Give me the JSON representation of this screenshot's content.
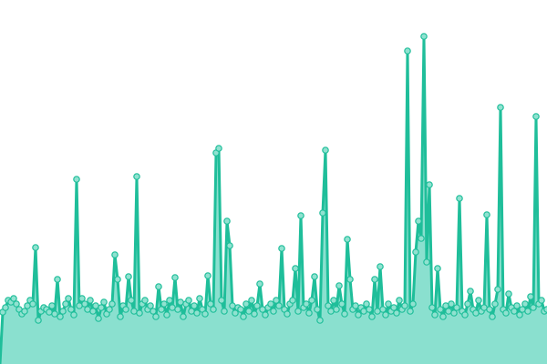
{
  "chart_data": {
    "type": "area",
    "title": "",
    "xlabel": "",
    "ylabel": "",
    "grid": false,
    "legend": "none",
    "axes_visible": false,
    "ylim": [
      0,
      400
    ],
    "colors": {
      "line": "#1fbe9a",
      "fill": "#8ae0cf",
      "marker_fill": "#90e2d0",
      "marker_stroke": "#1fbe9a"
    },
    "values": [
      0,
      57,
      62,
      70,
      68,
      72,
      66,
      60,
      55,
      58,
      64,
      70,
      66,
      128,
      48,
      58,
      62,
      60,
      57,
      64,
      55,
      93,
      52,
      58,
      66,
      72,
      60,
      54,
      203,
      64,
      72,
      66,
      60,
      70,
      58,
      64,
      50,
      62,
      68,
      55,
      60,
      66,
      120,
      93,
      52,
      64,
      60,
      96,
      70,
      58,
      206,
      56,
      66,
      70,
      60,
      64,
      58,
      52,
      85,
      60,
      66,
      54,
      70,
      62,
      95,
      60,
      68,
      52,
      66,
      70,
      58,
      64,
      56,
      72,
      60,
      55,
      97,
      66,
      60,
      232,
      237,
      70,
      58,
      157,
      130,
      64,
      56,
      62,
      60,
      52,
      66,
      58,
      70,
      55,
      64,
      88,
      60,
      54,
      62,
      66,
      58,
      70,
      64,
      127,
      60,
      55,
      66,
      70,
      105,
      58,
      163,
      62,
      66,
      56,
      70,
      96,
      60,
      48,
      166,
      235,
      64,
      58,
      70,
      60,
      86,
      66,
      55,
      137,
      93,
      60,
      64,
      54,
      62,
      58,
      66,
      60,
      52,
      93,
      58,
      107,
      60,
      54,
      66,
      58,
      62,
      56,
      70,
      60,
      64,
      344,
      58,
      66,
      123,
      157,
      138,
      360,
      112,
      197,
      62,
      54,
      105,
      60,
      52,
      64,
      58,
      66,
      56,
      62,
      182,
      58,
      54,
      66,
      80,
      60,
      56,
      70,
      58,
      62,
      164,
      60,
      52,
      66,
      82,
      282,
      60,
      56,
      77,
      62,
      58,
      64,
      54,
      60,
      66,
      58,
      74,
      62,
      272,
      66,
      70,
      58,
      60
    ]
  }
}
